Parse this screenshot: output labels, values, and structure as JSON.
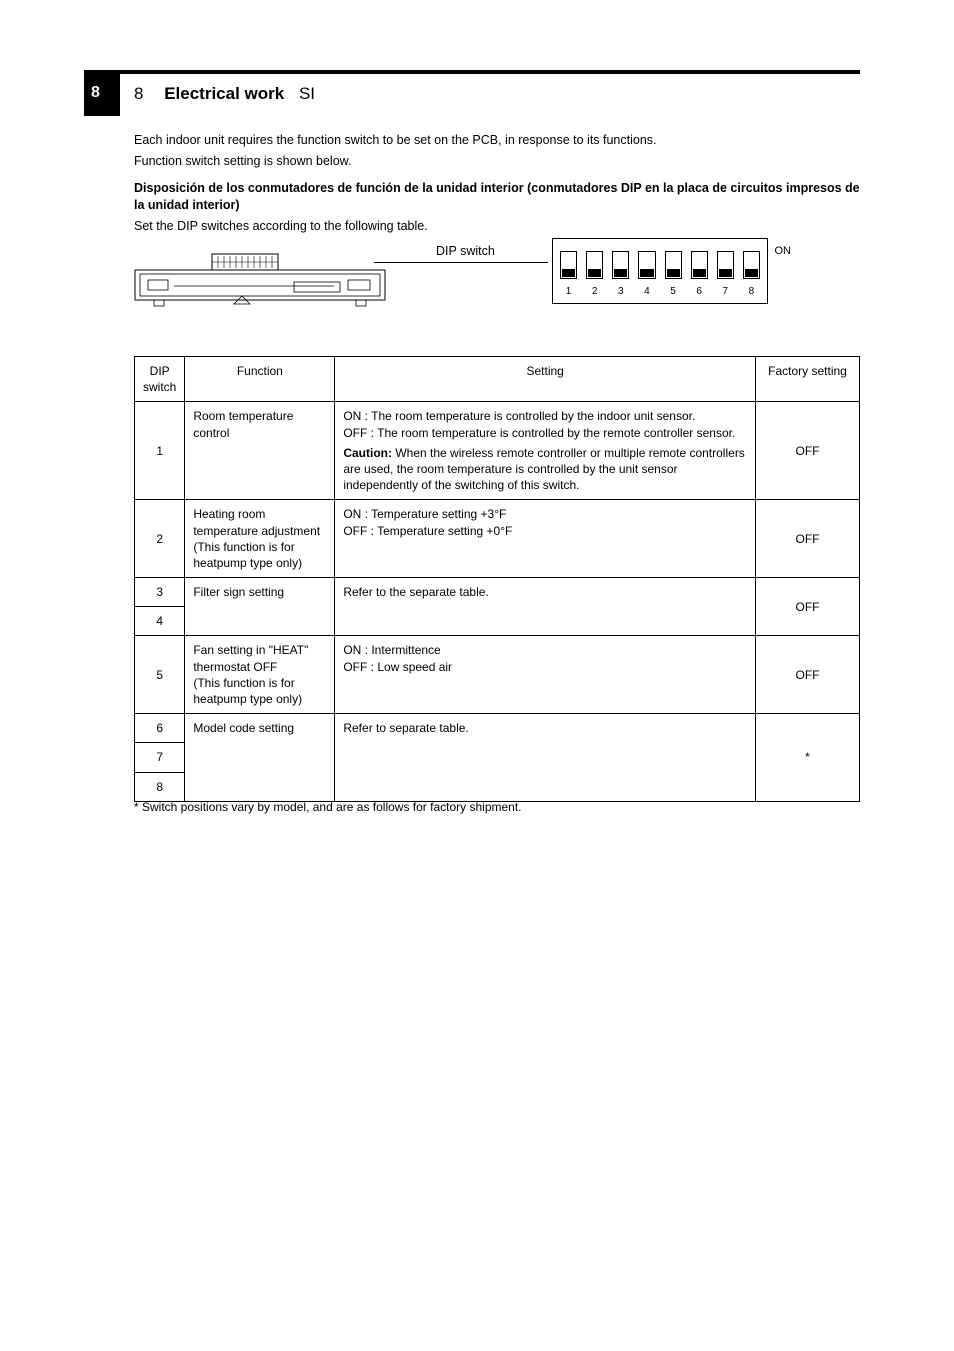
{
  "page": {
    "side_number": "8",
    "ref": "8",
    "title": "Electrical work",
    "eyebrow": "SI"
  },
  "intro": {
    "l1": "Each indoor unit requires the function switch to be set on the PCB, in response to its functions.",
    "l2": "Function switch setting is shown below.",
    "sub_h": "Disposición de los conmutadores de función de la unidad interior (conmutadores DIP en la placa de circuitos impresos de la unidad interior)",
    "sub_b": "Set the DIP switches according to the following table."
  },
  "diagram": {
    "leader_label": "DIP switch",
    "on_label": "ON"
  },
  "dip": {
    "switches": [
      {
        "num": "1",
        "pos": "down"
      },
      {
        "num": "2",
        "pos": "down"
      },
      {
        "num": "3",
        "pos": "down"
      },
      {
        "num": "4",
        "pos": "down"
      },
      {
        "num": "5",
        "pos": "down"
      },
      {
        "num": "6",
        "pos": "down"
      },
      {
        "num": "7",
        "pos": "down"
      },
      {
        "num": "8",
        "pos": "down"
      }
    ]
  },
  "table": {
    "head": {
      "c1": "DIP switch",
      "c2": "Function",
      "c3": "Setting",
      "c4": "Factory setting"
    },
    "rows": [
      {
        "n": "1",
        "func": "Room temperature control",
        "set_on": "ON  : The room temperature is controlled by the indoor unit sensor.",
        "set_off": "OFF : The room temperature is controlled by the remote controller sensor.",
        "note_bold": "Caution:",
        "note": "When the wireless remote controller or multiple remote controllers are used, the room temperature is controlled by the unit sensor independently of the switching of this switch.",
        "fs": "OFF"
      },
      {
        "n": "2",
        "func": "Heating room temperature adjustment (This function is for heatpump type only)",
        "set_on": "ON  : Temperature setting +3°F",
        "set_off": "OFF : Temperature setting +0°F",
        "fs": "OFF"
      },
      {
        "n3": "3",
        "n4": "4",
        "func": "Filter sign setting",
        "set": "Refer to the separate table.",
        "fs": "OFF"
      },
      {
        "n": "5",
        "func": "Fan setting in \"HEAT\" thermostat OFF\n(This function is for heatpump type only)",
        "set_on": "ON  : Intermittence",
        "set_off": "OFF : Low speed air",
        "fs": "OFF"
      },
      {
        "n6": "6",
        "n7": "7",
        "n8": "8",
        "func": "Model code setting",
        "set": "Refer to separate table.",
        "fs": "*"
      }
    ],
    "footnote": "* Switch positions vary by model, and are as follows for factory shipment."
  }
}
